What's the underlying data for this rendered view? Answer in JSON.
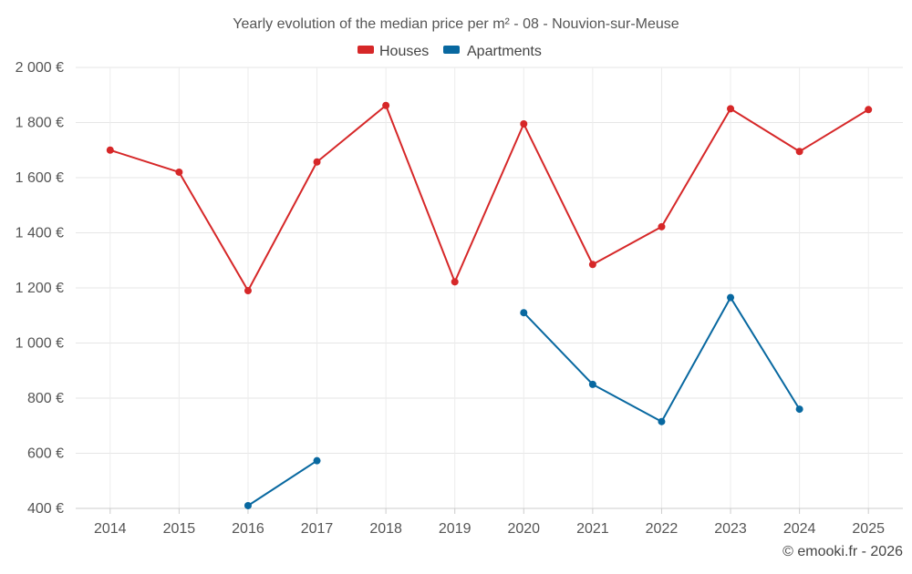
{
  "chart_data": {
    "type": "line",
    "title": "Yearly evolution of the median price per m² - 08 - Nouvion-sur-Meuse",
    "categories": [
      "2014",
      "2015",
      "2016",
      "2017",
      "2018",
      "2019",
      "2020",
      "2021",
      "2022",
      "2023",
      "2024",
      "2025"
    ],
    "ylim": [
      400,
      2000
    ],
    "yticks": [
      400,
      600,
      800,
      1000,
      1200,
      1400,
      1600,
      1800,
      2000
    ],
    "ytick_labels": [
      "400 €",
      "600 €",
      "800 €",
      "1 000 €",
      "1 200 €",
      "1 400 €",
      "1 600 €",
      "1 800 €",
      "2 000 €"
    ],
    "grid": true,
    "legend_position": "top-center",
    "series": [
      {
        "name": "Houses",
        "color": "#d62728",
        "values": [
          1700,
          1620,
          1190,
          1657,
          1862,
          1222,
          1795,
          1285,
          1422,
          1850,
          1695,
          1847
        ]
      },
      {
        "name": "Apartments",
        "color": "#0868a0",
        "values": [
          null,
          null,
          410,
          573,
          null,
          null,
          1110,
          850,
          715,
          1165,
          760,
          null
        ]
      }
    ]
  },
  "credit": "© emooki.fr - 2026"
}
